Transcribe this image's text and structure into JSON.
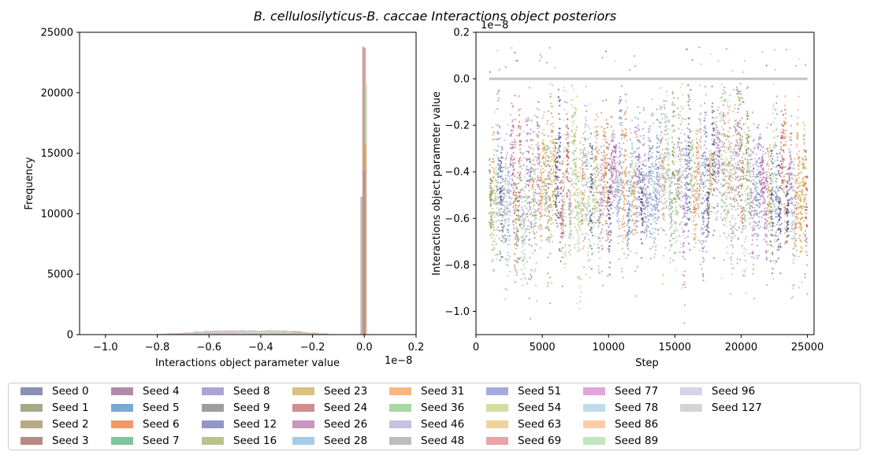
{
  "chart_data": [
    {
      "type": "histogram",
      "title": "B. cellulosilyticus-B. caccae Interactions object posteriors",
      "xlabel": "Interactions object parameter value",
      "ylabel": "Frequency",
      "x_offset_text": "1e−8",
      "xlim": [
        -1.1,
        0.2
      ],
      "ylim": [
        0,
        25000
      ],
      "x_ticks": [
        "−1.0",
        "−0.8",
        "−0.6",
        "−0.4",
        "−0.2",
        "0.0",
        "0.2"
      ],
      "y_ticks": [
        "0",
        "5000",
        "10000",
        "15000",
        "20000",
        "25000"
      ],
      "peak_frequency_near_zero": 24000,
      "broad_mass_range": [
        -0.8,
        -0.15
      ],
      "broad_mass_height": 350
    },
    {
      "type": "scatter",
      "xlabel": "Step",
      "ylabel": "Interactions object parameter value",
      "y_offset_text": "1e−8",
      "xlim": [
        0,
        25500
      ],
      "ylim": [
        -1.1,
        0.2
      ],
      "x_ticks": [
        "0",
        "5000",
        "10000",
        "15000",
        "20000",
        "25000"
      ],
      "y_ticks": [
        "−1.0",
        "−0.8",
        "−0.6",
        "−0.4",
        "−0.2",
        "0.0",
        "0.2"
      ],
      "step_range": [
        1000,
        25000
      ],
      "zero_line_value": 0.0,
      "trace_range": [
        -1.05,
        0.15
      ]
    }
  ],
  "legend": [
    {
      "label": "Seed 0",
      "color": "#8c8fb5"
    },
    {
      "label": "Seed 1",
      "color": "#a0ad86"
    },
    {
      "label": "Seed 2",
      "color": "#b8aa85"
    },
    {
      "label": "Seed 3",
      "color": "#b88987"
    },
    {
      "label": "Seed 4",
      "color": "#b08ba8"
    },
    {
      "label": "Seed 5",
      "color": "#7aaad4"
    },
    {
      "label": "Seed 6",
      "color": "#ef9a66"
    },
    {
      "label": "Seed 7",
      "color": "#7fc49a"
    },
    {
      "label": "Seed 8",
      "color": "#a9a6d4"
    },
    {
      "label": "Seed 9",
      "color": "#9e9e9e"
    },
    {
      "label": "Seed 12",
      "color": "#9396c8"
    },
    {
      "label": "Seed 16",
      "color": "#b8c48f"
    },
    {
      "label": "Seed 23",
      "color": "#d9c180"
    },
    {
      "label": "Seed 24",
      "color": "#cf8e8d"
    },
    {
      "label": "Seed 26",
      "color": "#c995c0"
    },
    {
      "label": "Seed 28",
      "color": "#a5cce6"
    },
    {
      "label": "Seed 31",
      "color": "#f9b780"
    },
    {
      "label": "Seed 36",
      "color": "#a8d8a4"
    },
    {
      "label": "Seed 46",
      "color": "#c5c2e0"
    },
    {
      "label": "Seed 48",
      "color": "#bdbdbd"
    },
    {
      "label": "Seed 51",
      "color": "#a6aadf"
    },
    {
      "label": "Seed 54",
      "color": "#cfe0a1"
    },
    {
      "label": "Seed 63",
      "color": "#eed49a"
    },
    {
      "label": "Seed 69",
      "color": "#e8a3a6"
    },
    {
      "label": "Seed 77",
      "color": "#e0a6d9"
    },
    {
      "label": "Seed 78",
      "color": "#c0dceb"
    },
    {
      "label": "Seed 86",
      "color": "#fccda6"
    },
    {
      "label": "Seed 89",
      "color": "#c1e6bd"
    },
    {
      "label": "Seed 96",
      "color": "#d3d3e9"
    },
    {
      "label": "Seed 127",
      "color": "#d4d4d4"
    }
  ],
  "scatter_colors": [
    "#3d3f75",
    "#6a79c4",
    "#c44e52",
    "#c9a73d",
    "#9dd08e",
    "#8aa8c8",
    "#a0a0a0",
    "#d98b4a",
    "#6a8f3a",
    "#b06aa8"
  ]
}
